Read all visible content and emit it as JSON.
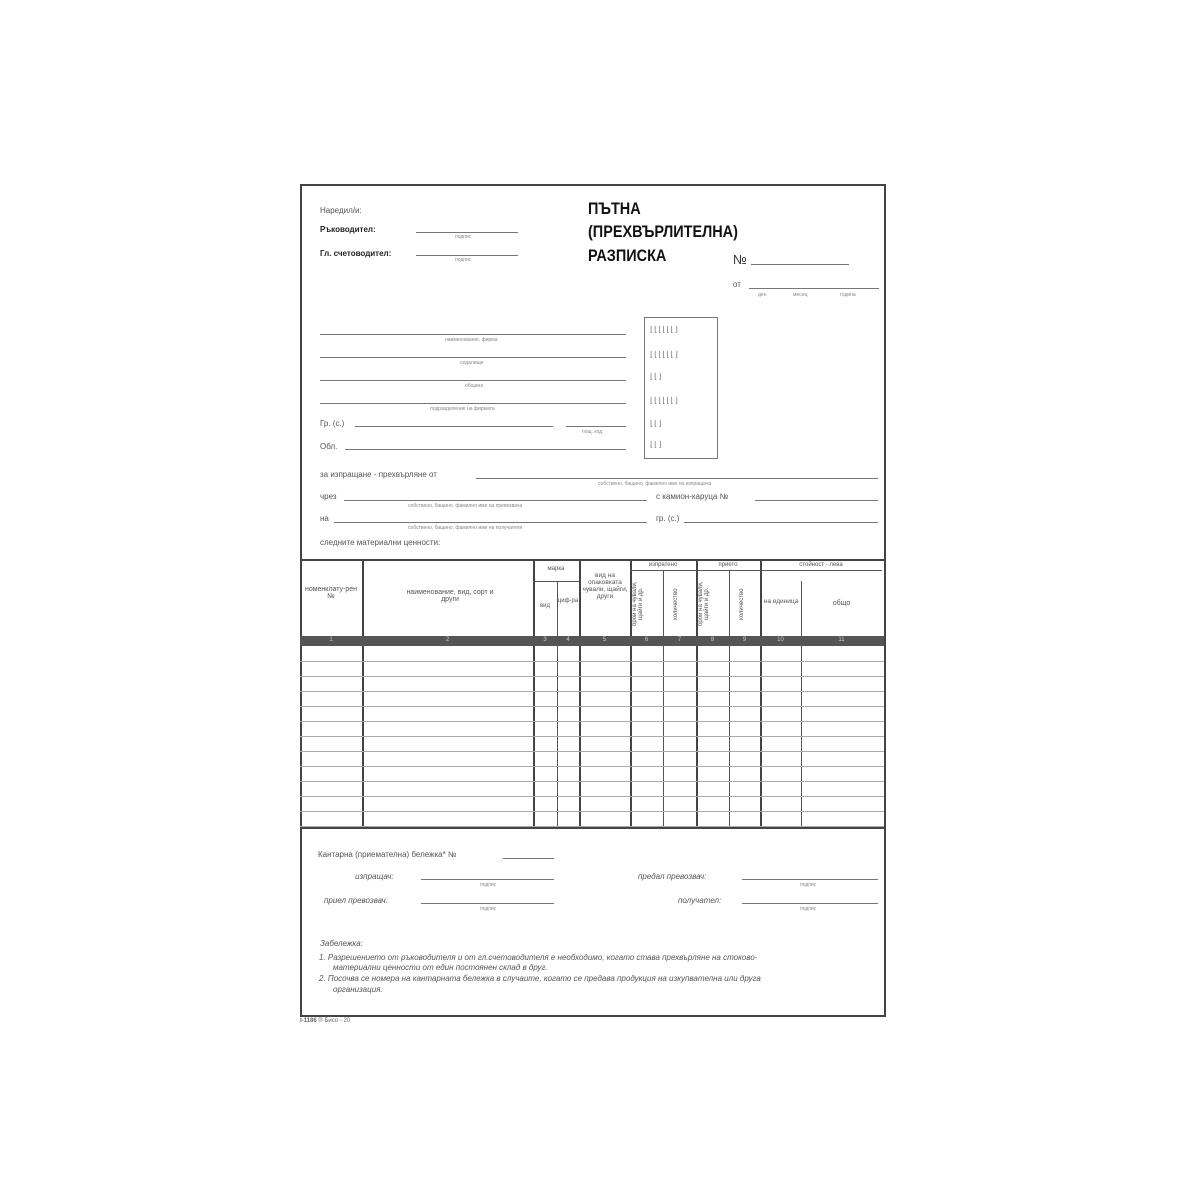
{
  "header": {
    "issued_by": "Наредил/и:",
    "manager": "Ръководител:",
    "chief_accountant": "Гл. счетоводител:",
    "signature": "подпис",
    "title_line1": "ПЪТНА",
    "title_line2": "(ПРЕХВЪРЛИТЕЛНА)",
    "title_line3": "РАЗПИСКА",
    "number_label": "№",
    "date_from": "от",
    "day": "ден",
    "month": "месец",
    "year": "година"
  },
  "company": {
    "name": "наименование, фирма",
    "seat": "седалище",
    "municipality": "община",
    "division": "подразделение на фирмата",
    "city": "Гр. (с.)",
    "postcode": "пощ. код",
    "region": "Обл."
  },
  "transfer": {
    "from_label": "за изпращане - прехвърляне от",
    "from_hint": "собствено, бащино, фамилно име на изпращача",
    "via_label": "чрез",
    "via_hint": "собствено, бащино, фамилно име на превозвача",
    "truck_label": "с камион-каруца №",
    "to_label": "на",
    "to_hint": "собствено, бащино, фамилно име на получателя",
    "city_label": "гр. (с.)",
    "items_label": "следните материални ценности:"
  },
  "table": {
    "col_nomenclature": "номенклату-рен №",
    "col_name": "наименование, вид, сорт и други",
    "col_mark": "марка",
    "col_mark_type": "вид",
    "col_mark_digit": "циф-ра",
    "col_package": "вид на опаковката чували, щайги, други",
    "col_sent": "изпратено",
    "col_received": "прието",
    "col_count": "брой на чували, щайги и др.",
    "col_qty": "количество",
    "col_value": "стойност - лева",
    "col_unit": "на единица",
    "col_total": "общо",
    "numbers": [
      "1",
      "2",
      "3",
      "4",
      "5",
      "6",
      "7",
      "8",
      "9",
      "10",
      "11"
    ]
  },
  "footer": {
    "scale_note": "Кантарна (приемателна) бележка* №",
    "sender": "изпращач:",
    "handed_carrier": "предал превозвач:",
    "received_carrier": "приел превозвач:",
    "recipient": "получател:",
    "signature": "подпис",
    "remark_title": "Забележка:",
    "remark1": "1.  Разрешението от ръководителя и от гл.счетоводителя е необходимо, когато става прехвърляне на стоково-",
    "remark1b": "материални ценности от един постоянен склад в друг.",
    "remark2": "2.  Посочва се номера на кантарната бележка в случаите, когато се предава продукция на изкупвателна или друга",
    "remark2b": "организация.",
    "code": "I-1186",
    "code_suffix": "® Бисо - 20"
  }
}
